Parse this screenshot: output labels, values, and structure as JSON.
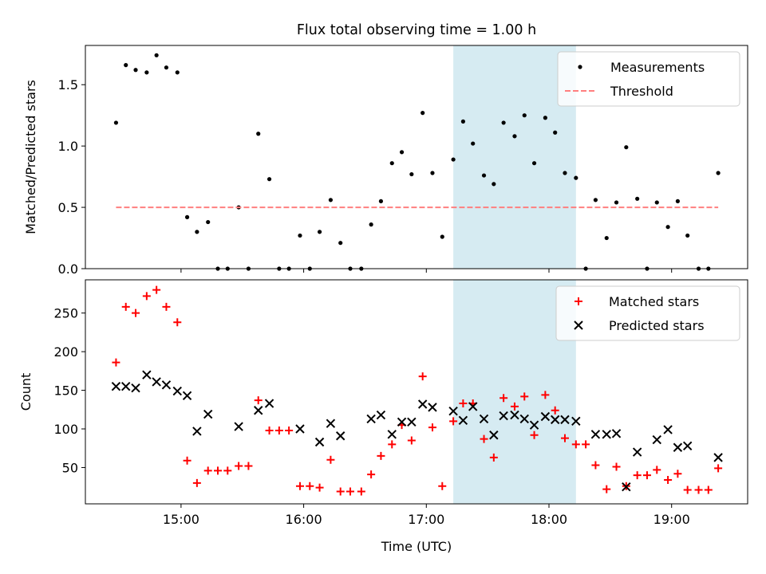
{
  "title": "Flux total observing time = 1.00 h",
  "chart_data": [
    {
      "type": "scatter",
      "ylabel": "Matched/Predicted stars",
      "xlabel": "",
      "x_unit": "hours UTC",
      "xlim": [
        14.22,
        19.62
      ],
      "ylim": [
        0,
        1.82
      ],
      "yticks": [
        0.0,
        0.5,
        1.0,
        1.5
      ],
      "ytick_labels": [
        "0.0",
        "0.5",
        "1.0",
        "1.5"
      ],
      "xticks": [
        15,
        16,
        17,
        18,
        19
      ],
      "shaded_band": {
        "x0": 17.22,
        "x1": 18.22,
        "color": "#add8e6"
      },
      "legend_position": "upper right",
      "series": [
        {
          "name": "Measurements",
          "marker": "dot",
          "color": "#000000",
          "x": [
            14.47,
            14.55,
            14.63,
            14.72,
            14.8,
            14.88,
            14.97,
            15.05,
            15.13,
            15.22,
            15.3,
            15.38,
            15.47,
            15.55,
            15.63,
            15.72,
            15.8,
            15.88,
            15.97,
            16.05,
            16.13,
            16.22,
            16.3,
            16.38,
            16.47,
            16.55,
            16.63,
            16.72,
            16.8,
            16.88,
            16.97,
            17.05,
            17.13,
            17.22,
            17.3,
            17.38,
            17.47,
            17.55,
            17.63,
            17.72,
            17.8,
            17.88,
            17.97,
            18.05,
            18.13,
            18.22,
            18.3,
            18.38,
            18.47,
            18.55,
            18.63,
            18.72,
            18.8,
            18.88,
            18.97,
            19.05,
            19.13,
            19.22,
            19.3,
            19.38
          ],
          "y": [
            1.19,
            1.66,
            1.62,
            1.6,
            1.74,
            1.64,
            1.6,
            0.42,
            0.3,
            0.38,
            0.0,
            0.0,
            0.5,
            0.0,
            1.1,
            0.73,
            0.0,
            0.0,
            0.27,
            0.0,
            0.3,
            0.56,
            0.21,
            0.0,
            0.0,
            0.36,
            0.55,
            0.86,
            0.95,
            0.77,
            1.27,
            0.78,
            0.26,
            0.89,
            1.2,
            1.02,
            0.76,
            0.69,
            1.19,
            1.08,
            1.25,
            0.86,
            1.23,
            1.11,
            0.78,
            0.74,
            0.0,
            0.56,
            0.25,
            0.54,
            0.99,
            0.57,
            0.0,
            0.54,
            0.34,
            0.55,
            0.27,
            0.0,
            0.0,
            0.78
          ]
        },
        {
          "name": "Threshold",
          "style": "dashed",
          "color": "#ff7f7f",
          "x": [
            14.47,
            19.38
          ],
          "y": [
            0.5,
            0.5
          ]
        }
      ]
    },
    {
      "type": "scatter",
      "ylabel": "Count",
      "xlabel": "Time (UTC)",
      "x_unit": "hours UTC",
      "xlim": [
        14.22,
        19.62
      ],
      "ylim": [
        3,
        293
      ],
      "yticks": [
        50,
        100,
        150,
        200,
        250
      ],
      "ytick_labels": [
        "50",
        "100",
        "150",
        "200",
        "250"
      ],
      "xticks": [
        15,
        16,
        17,
        18,
        19
      ],
      "xtick_labels": [
        "15:00",
        "16:00",
        "17:00",
        "18:00",
        "19:00"
      ],
      "shaded_band": {
        "x0": 17.22,
        "x1": 18.22,
        "color": "#add8e6"
      },
      "legend_position": "upper right",
      "series": [
        {
          "name": "Matched stars",
          "marker": "plus",
          "color": "#ff0000",
          "x": [
            14.47,
            14.55,
            14.63,
            14.72,
            14.8,
            14.88,
            14.97,
            15.05,
            15.13,
            15.22,
            15.3,
            15.38,
            15.47,
            15.55,
            15.63,
            15.72,
            15.8,
            15.88,
            15.97,
            16.05,
            16.13,
            16.22,
            16.3,
            16.38,
            16.47,
            16.55,
            16.63,
            16.72,
            16.8,
            16.88,
            16.97,
            17.05,
            17.13,
            17.22,
            17.3,
            17.38,
            17.47,
            17.55,
            17.63,
            17.72,
            17.8,
            17.88,
            17.97,
            18.05,
            18.13,
            18.22,
            18.3,
            18.38,
            18.47,
            18.55,
            18.63,
            18.72,
            18.8,
            18.88,
            18.97,
            19.05,
            19.13,
            19.22,
            19.3,
            19.38
          ],
          "y": [
            186,
            258,
            250,
            272,
            280,
            258,
            238,
            59,
            30,
            46,
            46,
            46,
            52,
            52,
            137,
            98,
            98,
            98,
            26,
            26,
            24,
            60,
            19,
            19,
            19,
            41,
            65,
            80,
            105,
            85,
            168,
            102,
            26,
            110,
            133,
            133,
            87,
            63,
            140,
            129,
            142,
            92,
            144,
            124,
            88,
            80,
            80,
            53,
            22,
            51,
            26,
            40,
            40,
            47,
            34,
            42,
            21,
            21,
            21,
            49
          ]
        },
        {
          "name": "Predicted stars",
          "marker": "x",
          "color": "#000000",
          "x": [
            14.47,
            14.55,
            14.63,
            14.72,
            14.8,
            14.88,
            14.97,
            15.05,
            15.13,
            15.22,
            15.47,
            15.63,
            15.72,
            15.97,
            16.13,
            16.22,
            16.3,
            16.55,
            16.63,
            16.72,
            16.8,
            16.88,
            16.97,
            17.05,
            17.22,
            17.3,
            17.38,
            17.47,
            17.55,
            17.63,
            17.72,
            17.8,
            17.88,
            17.97,
            18.05,
            18.13,
            18.22,
            18.38,
            18.47,
            18.55,
            18.63,
            18.72,
            18.88,
            18.97,
            19.05,
            19.13,
            19.38
          ],
          "y": [
            155,
            155,
            153,
            170,
            161,
            157,
            149,
            143,
            97,
            119,
            103,
            124,
            133,
            100,
            83,
            107,
            91,
            113,
            118,
            93,
            109,
            109,
            132,
            128,
            123,
            111,
            129,
            113,
            92,
            117,
            118,
            113,
            105,
            116,
            112,
            112,
            110,
            93,
            93,
            94,
            25,
            70,
            86,
            99,
            76,
            78,
            63
          ]
        }
      ]
    }
  ]
}
